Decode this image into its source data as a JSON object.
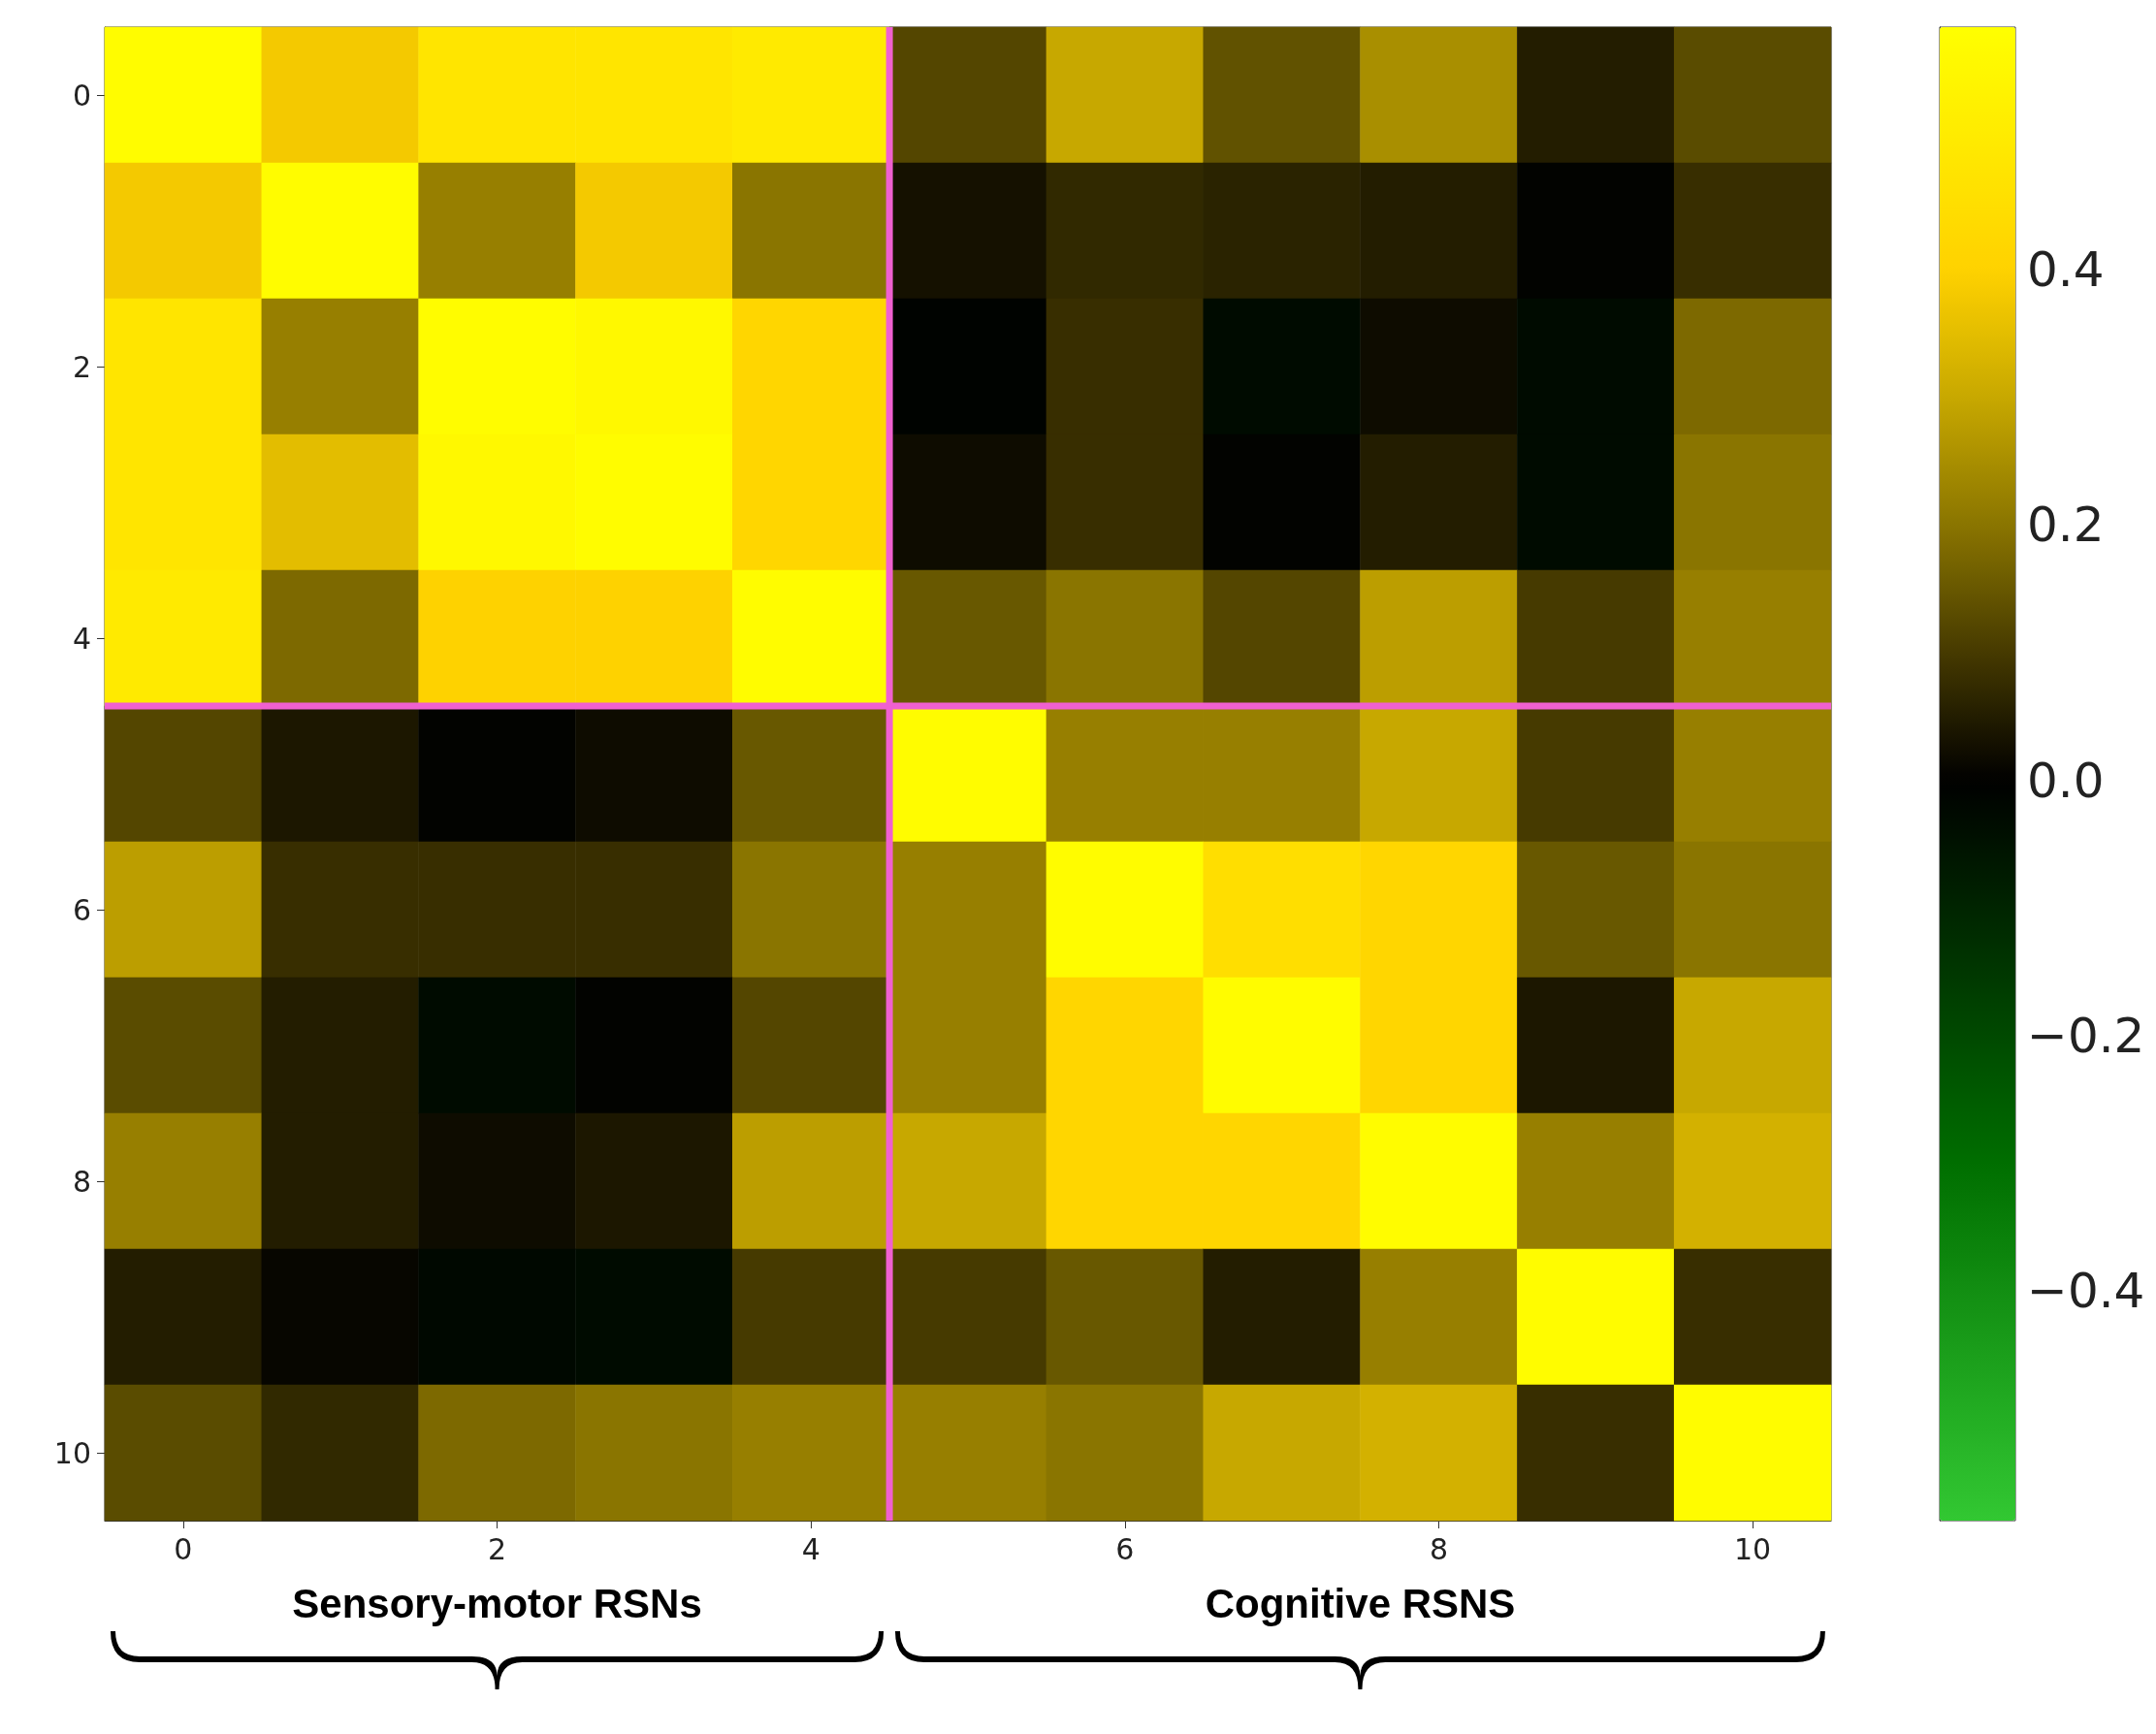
{
  "chart_data": {
    "type": "heatmap",
    "categories": [
      "0",
      null,
      "2",
      null,
      "4",
      null,
      "6",
      null,
      "8",
      null,
      "10"
    ],
    "y_categories": [
      "0",
      null,
      "2",
      null,
      "4",
      null,
      "6",
      null,
      "8",
      null,
      "10"
    ],
    "cells": [
      [
        0.58,
        0.38,
        0.48,
        0.48,
        0.5,
        0.12,
        0.3,
        0.14,
        0.25,
        0.05,
        0.13
      ],
      [
        0.38,
        0.58,
        0.22,
        0.38,
        0.2,
        0.03,
        0.07,
        0.06,
        0.05,
        0.0,
        0.08
      ],
      [
        0.48,
        0.22,
        0.58,
        0.56,
        0.42,
        -0.01,
        0.08,
        -0.03,
        0.02,
        -0.03,
        0.18
      ],
      [
        0.48,
        0.35,
        0.56,
        0.58,
        0.42,
        0.02,
        0.08,
        0.0,
        0.05,
        -0.03,
        0.2
      ],
      [
        0.5,
        0.18,
        0.4,
        0.4,
        0.58,
        0.15,
        0.2,
        0.12,
        0.28,
        0.1,
        0.22
      ],
      [
        0.12,
        0.04,
        0.0,
        0.02,
        0.15,
        0.58,
        0.22,
        0.22,
        0.3,
        0.1,
        0.22
      ],
      [
        0.28,
        0.08,
        0.08,
        0.08,
        0.2,
        0.22,
        0.58,
        0.45,
        0.42,
        0.15,
        0.2
      ],
      [
        0.13,
        0.05,
        -0.03,
        0.0,
        0.12,
        0.22,
        0.42,
        0.58,
        0.42,
        0.04,
        0.3
      ],
      [
        0.22,
        0.05,
        0.02,
        0.04,
        0.28,
        0.3,
        0.42,
        0.42,
        0.58,
        0.22,
        0.32
      ],
      [
        0.05,
        0.01,
        -0.02,
        -0.03,
        0.1,
        0.1,
        0.15,
        0.05,
        0.22,
        0.58,
        0.08
      ],
      [
        0.13,
        0.07,
        0.18,
        0.2,
        0.22,
        0.22,
        0.2,
        0.3,
        0.32,
        0.08,
        0.58
      ]
    ],
    "clim": [
      -0.58,
      0.59
    ],
    "cticks": [
      {
        "value": -0.4,
        "label": "−0.4"
      },
      {
        "value": -0.2,
        "label": "−0.2"
      },
      {
        "value": 0.0,
        "label": "0.0"
      },
      {
        "value": 0.2,
        "label": "0.2"
      },
      {
        "value": 0.4,
        "label": "0.4"
      }
    ],
    "annotations": [
      "Sensory-motor RSNs",
      "Cognitive RSNS"
    ]
  }
}
